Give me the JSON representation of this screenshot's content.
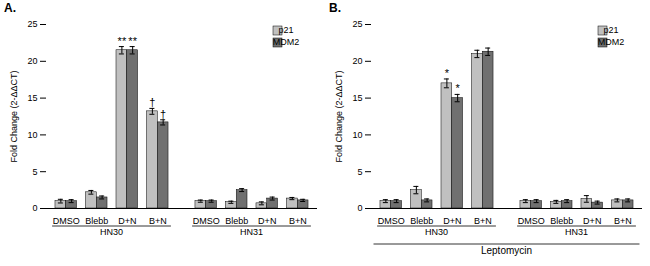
{
  "chart_data": [
    {
      "type": "bar",
      "title": "A.",
      "categories": [
        "DMSO",
        "Blebb",
        "D+N",
        "B+N",
        "DMSO",
        "Blebb",
        "D+N",
        "B+N"
      ],
      "cell_lines": [
        "HN30",
        "HN30",
        "HN30",
        "HN30",
        "HN31",
        "HN31",
        "HN31",
        "HN31"
      ],
      "series": [
        {
          "name": "p21",
          "color": "#c0c0c0",
          "values": [
            1.0,
            2.2,
            21.5,
            13.2,
            1.0,
            0.85,
            0.7,
            1.35
          ],
          "errors": [
            0.25,
            0.25,
            0.5,
            0.4,
            0.15,
            0.15,
            0.2,
            0.15
          ],
          "annotations": [
            null,
            null,
            "**",
            "†",
            null,
            null,
            null,
            null
          ]
        },
        {
          "name": "MDM2",
          "color": "#707070",
          "values": [
            1.0,
            1.5,
            21.5,
            11.7,
            1.0,
            2.5,
            1.35,
            1.1
          ],
          "errors": [
            0.2,
            0.2,
            0.5,
            0.35,
            0.15,
            0.2,
            0.2,
            0.15
          ],
          "annotations": [
            null,
            null,
            "**",
            "†",
            null,
            null,
            null,
            null
          ]
        }
      ],
      "ylabel": "Fold Change (2-ΔΔCT)",
      "ylim": [
        0,
        25
      ],
      "yticks": [
        0,
        5,
        10,
        15,
        20,
        25
      ],
      "grid": false,
      "legend": "upper right"
    },
    {
      "type": "bar",
      "title": "B.",
      "categories": [
        "DMSO",
        "Blebb",
        "D+N",
        "B+N",
        "DMSO",
        "Blebb",
        "D+N",
        "B+N"
      ],
      "cell_lines": [
        "HN30",
        "HN30",
        "HN30",
        "HN30",
        "HN31",
        "HN31",
        "HN31",
        "HN31"
      ],
      "series": [
        {
          "name": "p21",
          "color": "#c0c0c0",
          "values": [
            1.0,
            2.5,
            17.0,
            21.0,
            1.0,
            0.9,
            1.3,
            1.1
          ],
          "errors": [
            0.2,
            0.5,
            0.6,
            0.5,
            0.2,
            0.2,
            0.45,
            0.2
          ],
          "annotations": [
            null,
            null,
            "*",
            null,
            null,
            null,
            null,
            null
          ]
        },
        {
          "name": "MDM2",
          "color": "#707070",
          "values": [
            1.0,
            1.1,
            15.0,
            21.3,
            1.0,
            1.0,
            0.8,
            1.1
          ],
          "errors": [
            0.2,
            0.2,
            0.5,
            0.5,
            0.2,
            0.2,
            0.2,
            0.2
          ],
          "annotations": [
            null,
            null,
            "*",
            null,
            null,
            null,
            null,
            null
          ]
        }
      ],
      "xlabel": "Leptomycin",
      "ylabel": "Fold Change (2-ΔΔCT)",
      "ylim": [
        0,
        25
      ],
      "yticks": [
        0,
        5,
        10,
        15,
        20,
        25
      ],
      "grid": false,
      "legend": "upper right"
    }
  ]
}
